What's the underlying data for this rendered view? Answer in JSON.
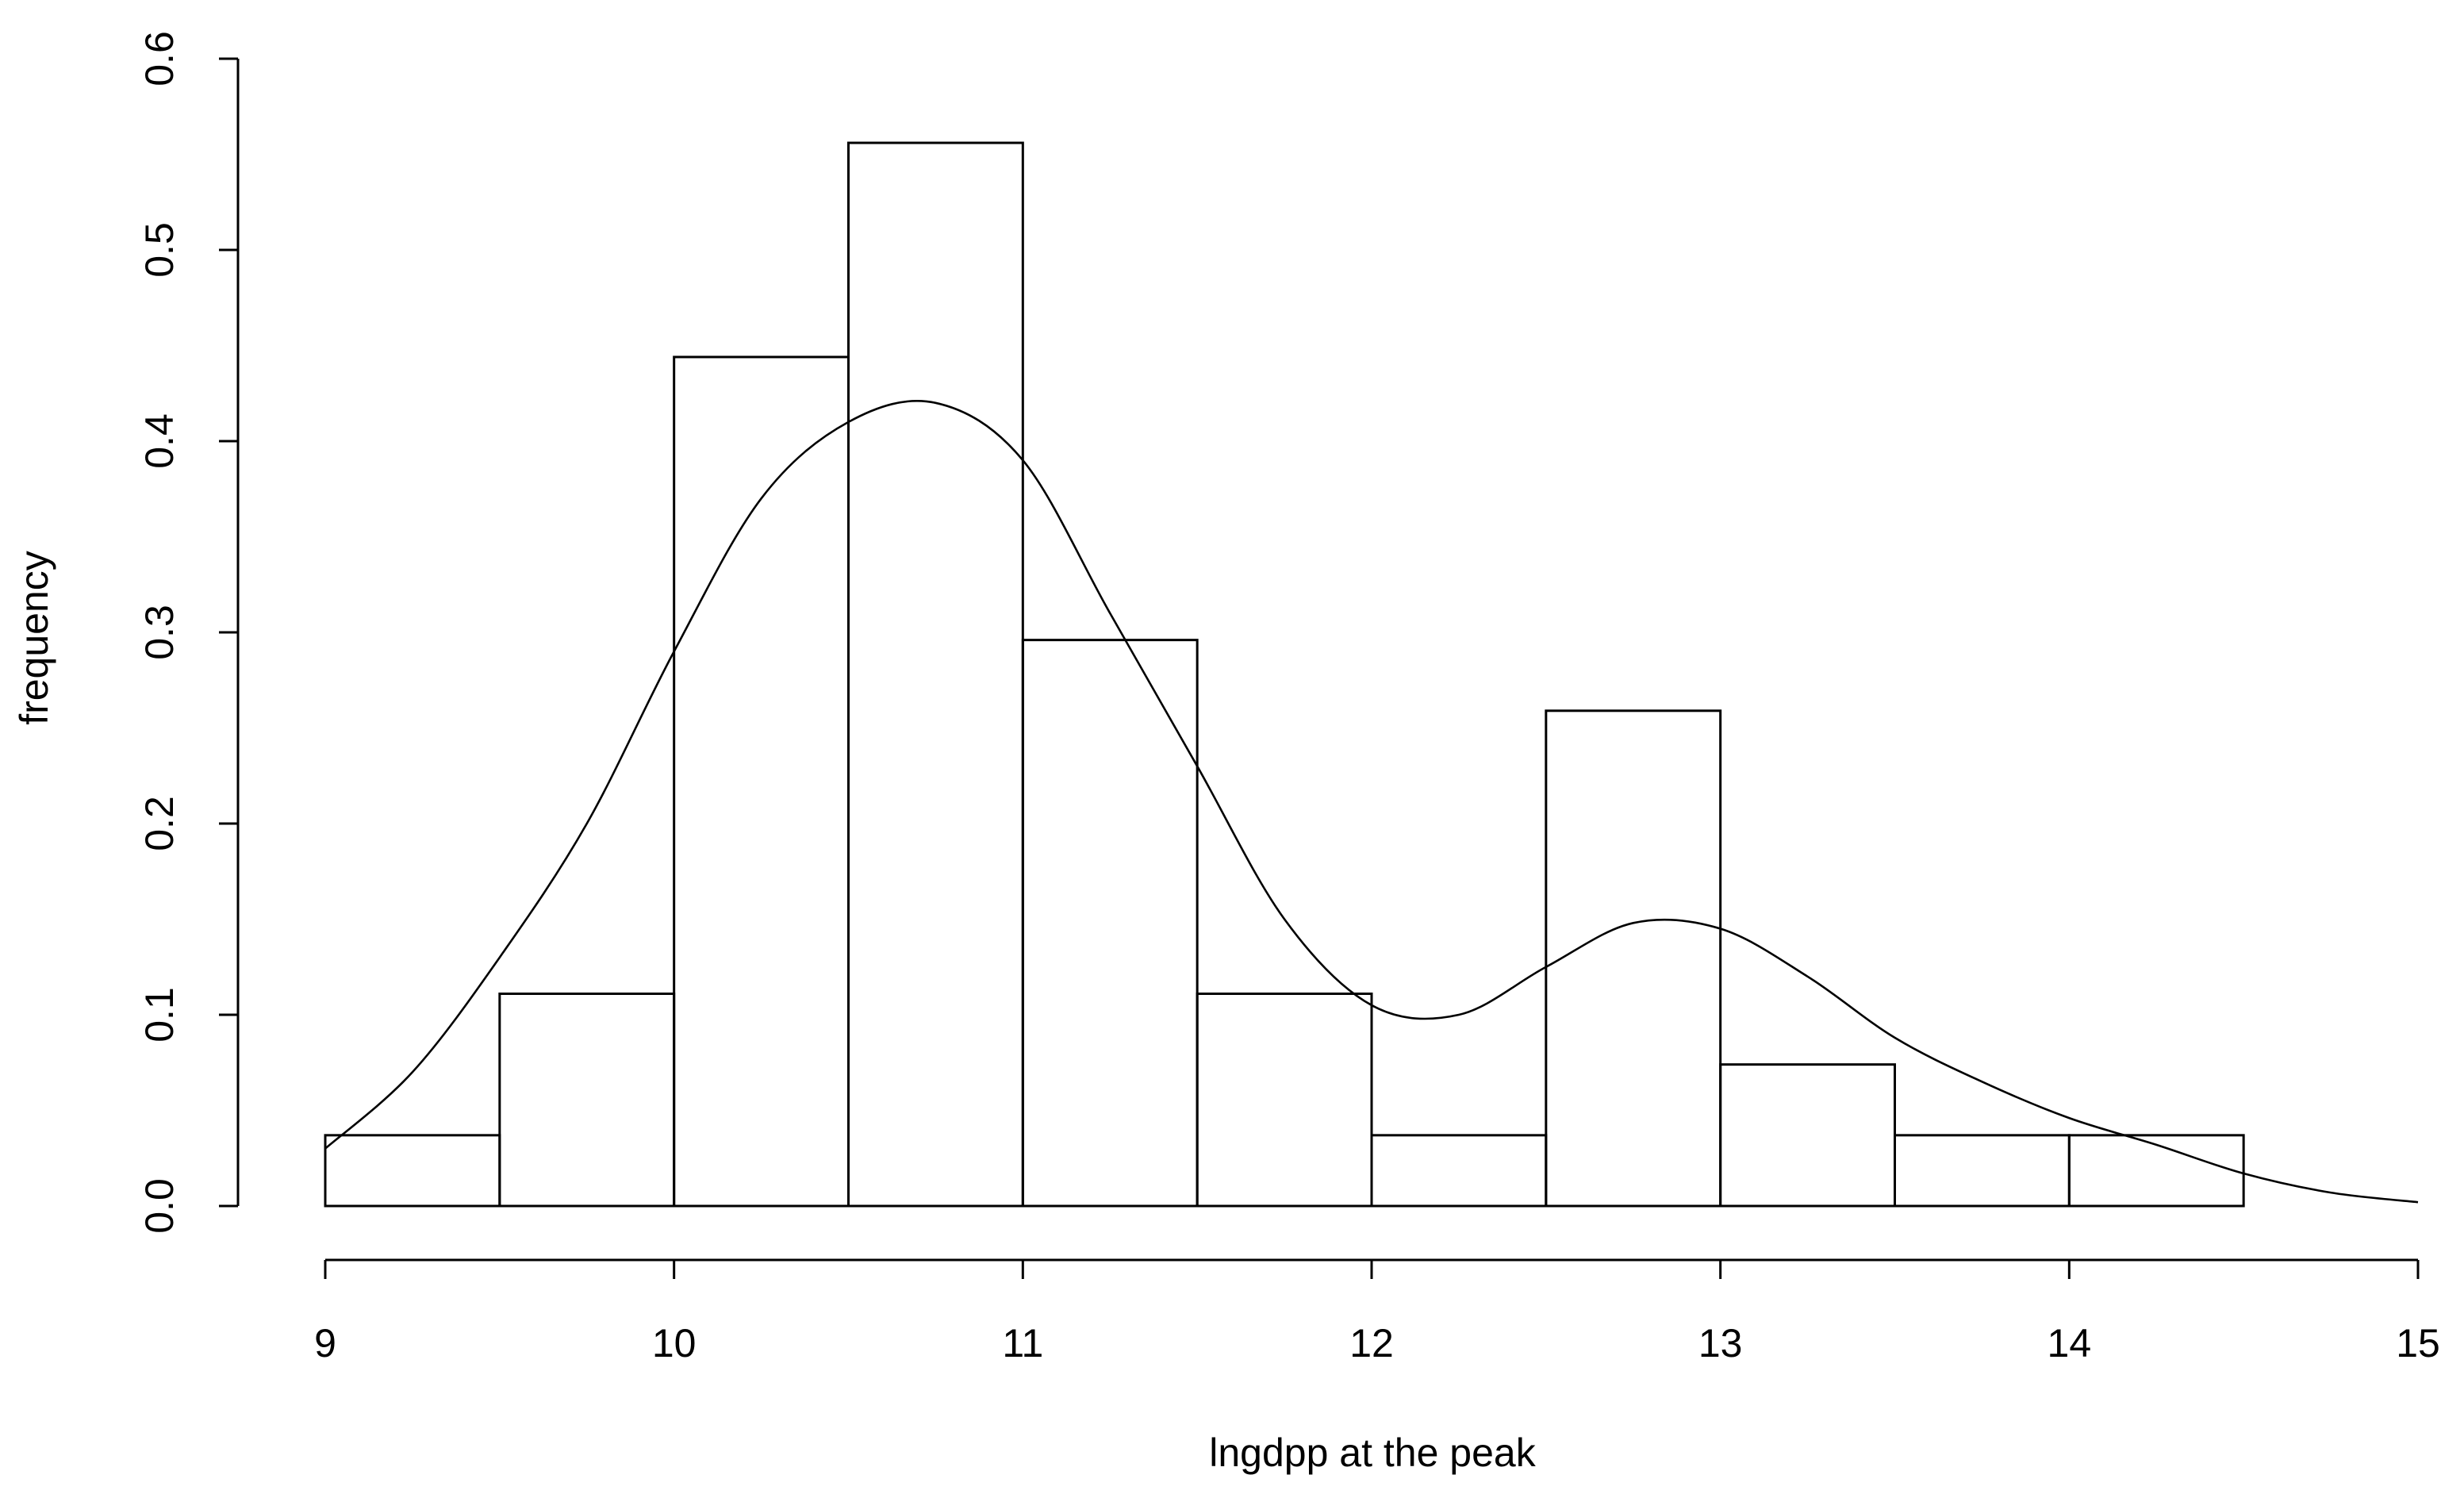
{
  "chart_data": {
    "type": "bar",
    "subtype": "histogram-with-density",
    "xlabel": "lngdpp at the peak",
    "ylabel": "frequency",
    "xlim": [
      9,
      15
    ],
    "ylim": [
      0,
      0.6
    ],
    "xticks": [
      "9",
      "10",
      "11",
      "12",
      "13",
      "14",
      "15"
    ],
    "yticks": [
      "0.0",
      "0.1",
      "0.2",
      "0.3",
      "0.4",
      "0.5",
      "0.6"
    ],
    "bins": [
      {
        "from": 9.0,
        "to": 9.5,
        "value": 0.037
      },
      {
        "from": 9.5,
        "to": 10.0,
        "value": 0.111
      },
      {
        "from": 10.0,
        "to": 10.5,
        "value": 0.444
      },
      {
        "from": 10.5,
        "to": 11.0,
        "value": 0.556
      },
      {
        "from": 11.0,
        "to": 11.5,
        "value": 0.296
      },
      {
        "from": 11.5,
        "to": 12.0,
        "value": 0.111
      },
      {
        "from": 12.0,
        "to": 12.5,
        "value": 0.037
      },
      {
        "from": 12.5,
        "to": 13.0,
        "value": 0.259
      },
      {
        "from": 13.0,
        "to": 13.5,
        "value": 0.074
      },
      {
        "from": 13.5,
        "to": 14.0,
        "value": 0.037
      },
      {
        "from": 14.0,
        "to": 14.5,
        "value": 0.037
      }
    ],
    "density_curve": {
      "x": [
        9.0,
        9.25,
        9.5,
        9.75,
        10.0,
        10.25,
        10.5,
        10.75,
        11.0,
        11.25,
        11.5,
        11.75,
        12.0,
        12.25,
        12.5,
        12.75,
        13.0,
        13.25,
        13.5,
        13.75,
        14.0,
        14.25,
        14.5,
        14.75,
        15.0
      ],
      "y": [
        0.03,
        0.07,
        0.13,
        0.2,
        0.29,
        0.37,
        0.41,
        0.42,
        0.39,
        0.31,
        0.23,
        0.15,
        0.105,
        0.1,
        0.125,
        0.148,
        0.145,
        0.12,
        0.088,
        0.065,
        0.046,
        0.032,
        0.017,
        0.007,
        0.002
      ]
    },
    "grid": false,
    "legend": "none"
  }
}
